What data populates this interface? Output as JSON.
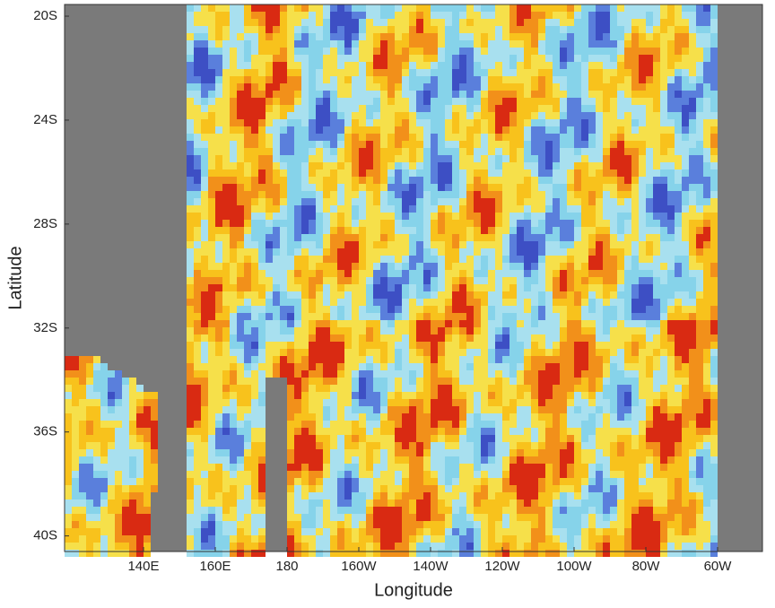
{
  "map": {
    "xlabel": "Longitude",
    "ylabel": "Latitude",
    "xlim": [
      118,
      312.5
    ],
    "ylim": [
      -40.6,
      -19.55
    ],
    "xticks": [
      {
        "value": 140,
        "label": "140E"
      },
      {
        "value": 160,
        "label": "160E"
      },
      {
        "value": 180,
        "label": "180"
      },
      {
        "value": 200,
        "label": "160W"
      },
      {
        "value": 220,
        "label": "140W"
      },
      {
        "value": 240,
        "label": "120W"
      },
      {
        "value": 260,
        "label": "100W"
      },
      {
        "value": 280,
        "label": "80W"
      },
      {
        "value": 300,
        "label": "60W"
      }
    ],
    "yticks": [
      {
        "value": -20,
        "label": "20S"
      },
      {
        "value": -24,
        "label": "24S"
      },
      {
        "value": -28,
        "label": "28S"
      },
      {
        "value": -32,
        "label": "32S"
      },
      {
        "value": -36,
        "label": "36S"
      },
      {
        "value": -40,
        "label": "40S"
      }
    ]
  }
}
